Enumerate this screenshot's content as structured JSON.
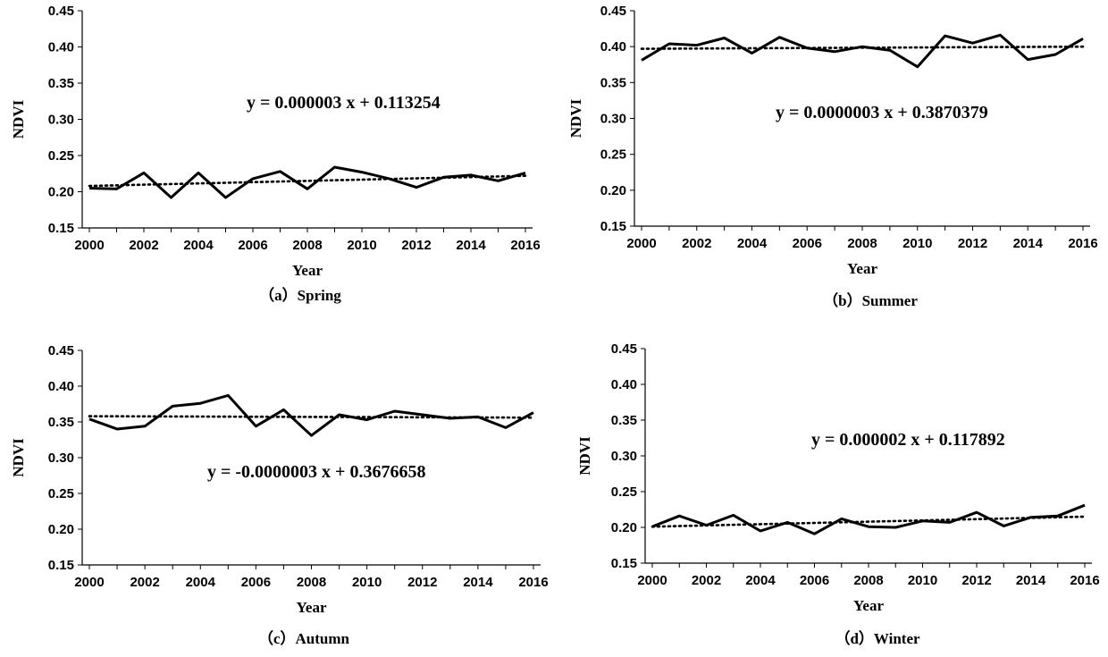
{
  "chart_data": [
    {
      "type": "line",
      "caption": "（a）Spring",
      "xlabel": "Year",
      "ylabel": "NDVI",
      "equation": "y = 0.000003 x + 0.113254",
      "x": [
        2000,
        2001,
        2002,
        2003,
        2004,
        2005,
        2006,
        2007,
        2008,
        2009,
        2010,
        2011,
        2012,
        2013,
        2014,
        2015,
        2016
      ],
      "xticks": [
        "2000",
        "2002",
        "2004",
        "2006",
        "2008",
        "2010",
        "2012",
        "2014",
        "2016"
      ],
      "yticks": [
        "0.15",
        "0.20",
        "0.25",
        "0.30",
        "0.35",
        "0.40",
        "0.45"
      ],
      "ylim": [
        0.15,
        0.45
      ],
      "series": [
        {
          "name": "NDVI",
          "values": [
            0.205,
            0.204,
            0.226,
            0.192,
            0.226,
            0.192,
            0.218,
            0.228,
            0.204,
            0.234,
            0.227,
            0.218,
            0.206,
            0.22,
            0.223,
            0.215,
            0.226
          ]
        }
      ],
      "trend": [
        0.208,
        0.222
      ]
    },
    {
      "type": "line",
      "caption": "（b）Summer",
      "xlabel": "Year",
      "ylabel": "NDVI",
      "equation": "y = 0.0000003 x + 0.3870379",
      "x": [
        2000,
        2001,
        2002,
        2003,
        2004,
        2005,
        2006,
        2007,
        2008,
        2009,
        2010,
        2011,
        2012,
        2013,
        2014,
        2015,
        2016
      ],
      "xticks": [
        "2000",
        "2002",
        "2004",
        "2006",
        "2008",
        "2010",
        "2012",
        "2014",
        "2016"
      ],
      "yticks": [
        "0.15",
        "0.20",
        "0.25",
        "0.30",
        "0.35",
        "0.40",
        "0.45"
      ],
      "ylim": [
        0.15,
        0.45
      ],
      "series": [
        {
          "name": "NDVI",
          "values": [
            0.381,
            0.404,
            0.402,
            0.412,
            0.391,
            0.413,
            0.398,
            0.393,
            0.4,
            0.395,
            0.372,
            0.415,
            0.405,
            0.416,
            0.382,
            0.389,
            0.411
          ]
        }
      ],
      "trend": [
        0.397,
        0.4
      ]
    },
    {
      "type": "line",
      "caption": "（c）Autumn",
      "xlabel": "Year",
      "ylabel": "NDVI",
      "equation": "y = -0.0000003 x + 0.3676658",
      "x": [
        2000,
        2001,
        2002,
        2003,
        2004,
        2005,
        2006,
        2007,
        2008,
        2009,
        2010,
        2011,
        2012,
        2013,
        2014,
        2015,
        2016
      ],
      "xticks": [
        "2000",
        "2002",
        "2004",
        "2006",
        "2008",
        "2010",
        "2012",
        "2014",
        "2016"
      ],
      "yticks": [
        "0.15",
        "0.20",
        "0.25",
        "0.30",
        "0.35",
        "0.40",
        "0.45"
      ],
      "ylim": [
        0.15,
        0.45
      ],
      "series": [
        {
          "name": "NDVI",
          "values": [
            0.354,
            0.34,
            0.344,
            0.372,
            0.376,
            0.387,
            0.344,
            0.367,
            0.331,
            0.36,
            0.353,
            0.365,
            0.36,
            0.355,
            0.357,
            0.342,
            0.363
          ]
        }
      ],
      "trend": [
        0.358,
        0.356
      ]
    },
    {
      "type": "line",
      "caption": "（d）Winter",
      "xlabel": "Year",
      "ylabel": "NDVI",
      "equation": "y = 0.000002 x + 0.117892",
      "x": [
        2000,
        2001,
        2002,
        2003,
        2004,
        2005,
        2006,
        2007,
        2008,
        2009,
        2010,
        2011,
        2012,
        2013,
        2014,
        2015,
        2016
      ],
      "xticks": [
        "2000",
        "2002",
        "2004",
        "2006",
        "2008",
        "2010",
        "2012",
        "2014",
        "2016"
      ],
      "yticks": [
        "0.15",
        "0.20",
        "0.25",
        "0.30",
        "0.35",
        "0.40",
        "0.45"
      ],
      "ylim": [
        0.15,
        0.45
      ],
      "series": [
        {
          "name": "NDVI",
          "values": [
            0.201,
            0.216,
            0.203,
            0.217,
            0.195,
            0.207,
            0.191,
            0.212,
            0.201,
            0.2,
            0.209,
            0.207,
            0.221,
            0.202,
            0.214,
            0.216,
            0.231
          ]
        }
      ],
      "trend": [
        0.201,
        0.215
      ]
    }
  ]
}
